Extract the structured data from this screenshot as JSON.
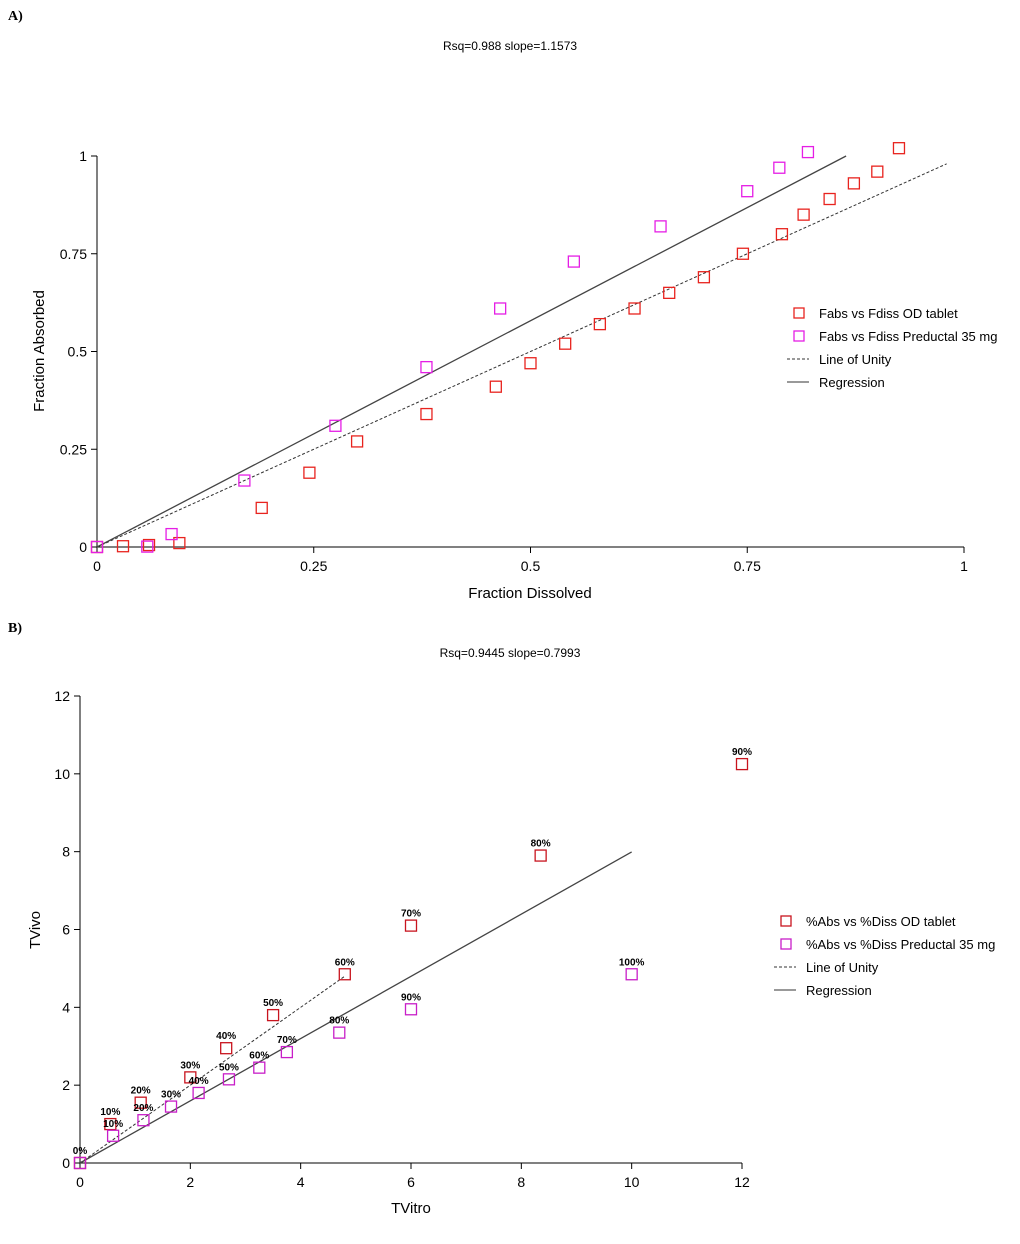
{
  "chart_data": [
    {
      "type": "scatter",
      "panel_label": "A)",
      "title": "Rsq=0.988  slope=1.1573",
      "xlabel": "Fraction Dissolved",
      "ylabel": "Fraction Absorbed",
      "xlim": [
        0,
        1
      ],
      "ylim": [
        0,
        1
      ],
      "xticks": [
        "0",
        "0.25",
        "0.5",
        "0.75",
        "1"
      ],
      "xtick_values": [
        0,
        0.25,
        0.5,
        0.75,
        1
      ],
      "yticks": [
        "0",
        "0.25",
        "0.5",
        "0.75",
        "1"
      ],
      "ytick_values": [
        0,
        0.25,
        0.5,
        0.75,
        1
      ],
      "grid": false,
      "legend_position": "right",
      "legend": [
        "Fabs vs Fdiss OD tablet",
        "Fabs vs Fdiss Preductal 35 mg",
        "Line of Unity",
        "Regression"
      ],
      "series": [
        {
          "name": "Fabs vs Fdiss OD tablet",
          "color": "#e8231e",
          "x": [
            0,
            0.03,
            0.06,
            0.095,
            0.19,
            0.245,
            0.3,
            0.38,
            0.46,
            0.5,
            0.54,
            0.58,
            0.62,
            0.66,
            0.7,
            0.745,
            0.79,
            0.815,
            0.845,
            0.873,
            0.9,
            0.925
          ],
          "y": [
            0,
            0.002,
            0.005,
            0.01,
            0.1,
            0.19,
            0.27,
            0.34,
            0.41,
            0.47,
            0.52,
            0.57,
            0.61,
            0.65,
            0.69,
            0.75,
            0.8,
            0.85,
            0.89,
            0.93,
            0.96,
            1.02
          ]
        },
        {
          "name": "Fabs vs Fdiss Preductal 35 mg",
          "color": "#e51ee5",
          "x": [
            0,
            0.058,
            0.086,
            0.17,
            0.275,
            0.38,
            0.465,
            0.55,
            0.65,
            0.75,
            0.787,
            0.82
          ],
          "y": [
            0,
            0.001,
            0.033,
            0.17,
            0.31,
            0.46,
            0.61,
            0.73,
            0.82,
            0.91,
            0.97,
            1.01
          ]
        }
      ],
      "lines": [
        {
          "name": "Line of Unity",
          "style": "dashed",
          "x": [
            0,
            0.98
          ],
          "y": [
            0,
            0.98
          ]
        },
        {
          "name": "Regression",
          "style": "solid",
          "x": [
            0,
            0.864
          ],
          "y": [
            0,
            1.0
          ]
        }
      ]
    },
    {
      "type": "scatter",
      "panel_label": "B)",
      "title": "Rsq=0.9445  slope=0.7993",
      "xlabel": "TVitro",
      "ylabel": "TVivo",
      "xlim": [
        0,
        12
      ],
      "ylim": [
        0,
        12
      ],
      "xticks": [
        "0",
        "2",
        "4",
        "6",
        "8",
        "10",
        "12"
      ],
      "xtick_values": [
        0,
        2,
        4,
        6,
        8,
        10,
        12
      ],
      "yticks": [
        "0",
        "2",
        "4",
        "6",
        "8",
        "10",
        "12"
      ],
      "ytick_values": [
        0,
        2,
        4,
        6,
        8,
        10,
        12
      ],
      "grid": false,
      "legend_position": "right",
      "legend": [
        "%Abs vs %Diss OD tablet",
        "%Abs vs %Diss Preductal 35 mg",
        "Line of Unity",
        "Regression"
      ],
      "series": [
        {
          "name": "%Abs vs %Diss OD tablet",
          "color": "#c8141e",
          "x": [
            0,
            0.55,
            1.1,
            2.0,
            2.65,
            3.5,
            4.8,
            6.0,
            8.35,
            12.0
          ],
          "y": [
            0,
            1.0,
            1.55,
            2.2,
            2.95,
            3.8,
            4.85,
            6.1,
            7.9,
            10.25
          ],
          "labels": [
            "0%",
            "10%",
            "20%",
            "30%",
            "40%",
            "50%",
            "60%",
            "70%",
            "80%",
            "90%"
          ]
        },
        {
          "name": "%Abs vs %Diss Preductal 35 mg",
          "color": "#c81ec8",
          "x": [
            0,
            0.6,
            1.15,
            1.65,
            2.15,
            2.7,
            3.25,
            3.75,
            4.7,
            6.0,
            10.0
          ],
          "y": [
            0,
            0.7,
            1.1,
            1.45,
            1.8,
            2.15,
            2.45,
            2.85,
            3.35,
            3.95,
            4.85
          ],
          "labels": [
            "",
            "10%",
            "20%",
            "30%",
            "40%",
            "50%",
            "60%",
            "70%",
            "80%",
            "90%",
            "100%"
          ]
        }
      ],
      "lines": [
        {
          "name": "Line of Unity",
          "style": "dashed",
          "x": [
            0,
            4.8
          ],
          "y": [
            0,
            4.8
          ]
        },
        {
          "name": "Regression",
          "style": "solid",
          "x": [
            0,
            10.0
          ],
          "y": [
            0,
            7.993
          ]
        }
      ]
    }
  ]
}
